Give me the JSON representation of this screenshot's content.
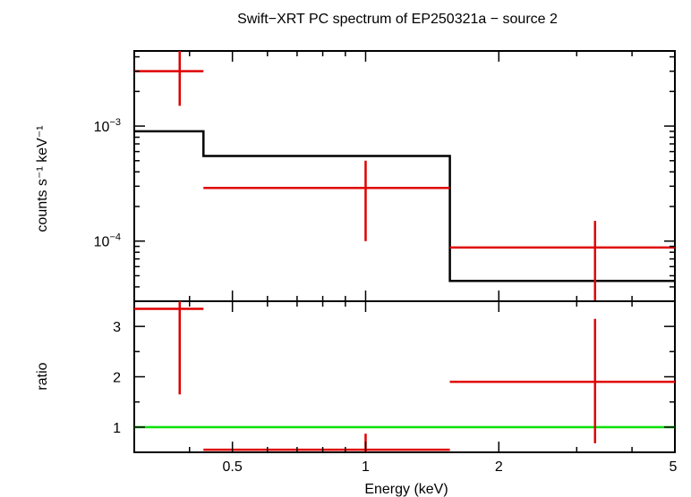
{
  "chart_data": {
    "type": "spectrum",
    "title": "Swift−XRT PC spectrum of EP250321a − source 2",
    "xlabel": "Energy (keV)",
    "xscale": "log",
    "xlim": [
      0.3,
      5.0
    ],
    "xticks": [
      {
        "value": 0.5,
        "label": "0.5"
      },
      {
        "value": 1,
        "label": "1"
      },
      {
        "value": 2,
        "label": "2"
      },
      {
        "value": 5,
        "label": "5"
      }
    ],
    "top_panel": {
      "ylabel": "counts s⁻¹ keV⁻¹",
      "yscale": "log",
      "ylim": [
        3e-05,
        0.0045
      ],
      "yticks": [
        {
          "value": 0.001,
          "base": "10",
          "exp": "−3"
        },
        {
          "value": 0.0001,
          "base": "10",
          "exp": "−4"
        }
      ],
      "data": [
        {
          "x": 0.38,
          "xlo": 0.3,
          "xhi": 0.43,
          "y": 0.003,
          "ylo": 0.0015,
          "yhi": 0.0045
        },
        {
          "x": 1.0,
          "xlo": 0.43,
          "xhi": 1.55,
          "y": 0.00029,
          "ylo": 0.0001,
          "yhi": 0.0005
        },
        {
          "x": 3.3,
          "xlo": 1.55,
          "xhi": 5.0,
          "y": 8.8e-05,
          "ylo": 3e-05,
          "yhi": 0.00015
        }
      ],
      "model": [
        {
          "xlo": 0.3,
          "xhi": 0.43,
          "y": 0.0009
        },
        {
          "xlo": 0.43,
          "xhi": 1.55,
          "y": 0.00055
        },
        {
          "xlo": 1.55,
          "xhi": 5.0,
          "y": 4.5e-05
        }
      ]
    },
    "bottom_panel": {
      "ylabel": "ratio",
      "yscale": "linear",
      "ylim": [
        0.5,
        3.5
      ],
      "yticks": [
        {
          "value": 1,
          "label": "1"
        },
        {
          "value": 2,
          "label": "2"
        },
        {
          "value": 3,
          "label": "3"
        }
      ],
      "data": [
        {
          "x": 0.38,
          "xlo": 0.3,
          "xhi": 0.43,
          "y": 3.35,
          "ylo": 1.65,
          "yhi": 3.5
        },
        {
          "x": 1.0,
          "xlo": 0.43,
          "xhi": 1.55,
          "y": 0.55,
          "ylo": 0.5,
          "yhi": 0.87
        },
        {
          "x": 3.3,
          "xlo": 1.55,
          "xhi": 5.0,
          "y": 1.9,
          "ylo": 0.68,
          "yhi": 3.15
        }
      ],
      "reference_line": 1
    },
    "colors": {
      "data": "#e00000",
      "model": "#000000",
      "reference": "#00e000",
      "frame": "#000000"
    }
  }
}
